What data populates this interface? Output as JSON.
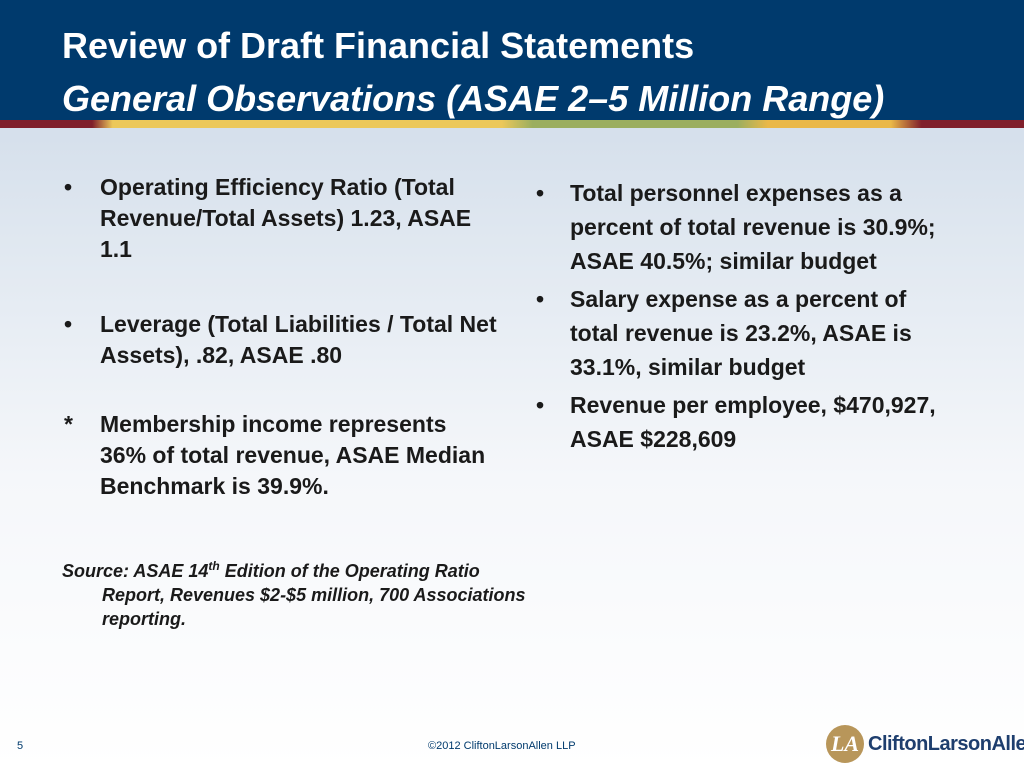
{
  "header": {
    "title": "Review of Draft Financial Statements",
    "subtitle": "General Observations (ASAE 2–5 Million Range)"
  },
  "left_column": {
    "items": [
      {
        "marker": "•",
        "text": "Operating Efficiency Ratio (Total Revenue/Total Assets) 1.23, ASAE 1.1"
      },
      {
        "marker": "•",
        "text": "Leverage (Total Liabilities / Total Net Assets), .82, ASAE .80"
      },
      {
        "marker": "*",
        "text": "Membership income represents 36% of total revenue, ASAE Median Benchmark is 39.9%."
      }
    ],
    "source": {
      "prefix": "Source: ASAE 14",
      "superscript": "th",
      "suffix": " Edition of the Operating Ratio Report, Revenues $2-$5 million, 700 Associations reporting."
    }
  },
  "right_column": {
    "items": [
      {
        "marker": "•",
        "text": "Total personnel expenses as a percent of total revenue is 30.9%; ASAE 40.5%; similar budget"
      },
      {
        "marker": "•",
        "text": "Salary expense as a percent of total revenue is 23.2%, ASAE is 33.1%, similar budget"
      },
      {
        "marker": "•",
        "text": "Revenue per employee, $470,927, ASAE $228,609"
      }
    ]
  },
  "footer": {
    "slide_number": "5",
    "copyright": "©2012 CliftonLarsonAllen LLP",
    "logo_text": "CliftonLarsonAllen",
    "logo_mark": "LA"
  },
  "colors": {
    "header_bg": "#003a6d",
    "title_text": "#ffffff",
    "body_text": "#1a1a1a",
    "logo_gold": "#b8965a",
    "logo_blue": "#1e3e6e"
  }
}
